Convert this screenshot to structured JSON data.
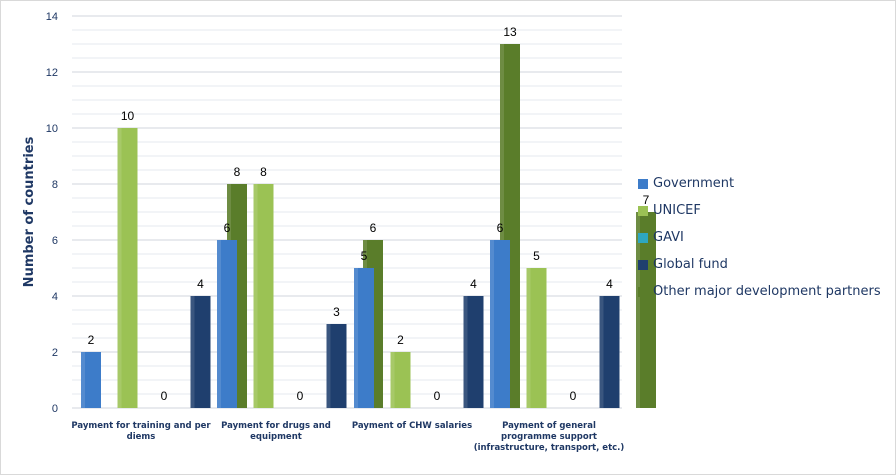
{
  "chart_data": {
    "type": "bar",
    "title": "",
    "xlabel": "",
    "ylabel": "Number of countries",
    "ylim": [
      0,
      14
    ],
    "yticks": [
      0,
      2,
      4,
      6,
      8,
      10,
      12,
      14
    ],
    "grid": true,
    "legend_position": "right",
    "categories": [
      [
        "Payment for training and per",
        "diems"
      ],
      [
        "Payment for drugs and",
        "equipment"
      ],
      [
        "Payment of CHW salaries"
      ],
      [
        "Payment of general",
        "programme support",
        "(infrastructure, transport, etc.)"
      ]
    ],
    "series": [
      {
        "name": "Government",
        "color": "#3d7cc9",
        "values": [
          2,
          6,
          5,
          6
        ]
      },
      {
        "name": "UNICEF",
        "color": "#9bc254",
        "values": [
          10,
          8,
          2,
          5
        ]
      },
      {
        "name": "GAVI",
        "color": "#2ea7c1",
        "values": [
          0,
          0,
          0,
          0
        ]
      },
      {
        "name": "Global fund",
        "color": "#1f3f6e",
        "values": [
          4,
          3,
          4,
          4
        ]
      },
      {
        "name": "Other major development partners",
        "color": "#5a7d2a",
        "values": [
          8,
          6,
          13,
          7
        ]
      }
    ]
  }
}
